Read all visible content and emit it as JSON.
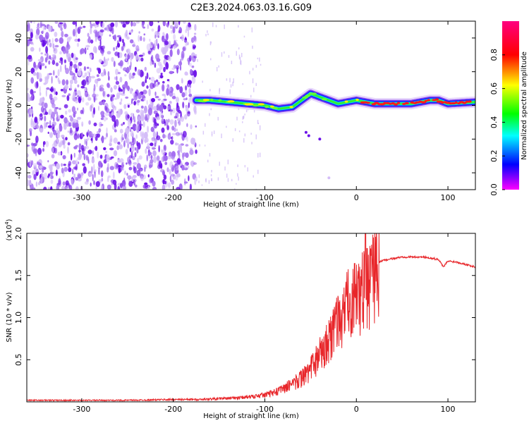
{
  "title": "C2E3.2024.063.03.16.G09",
  "colors": {
    "snr_line": "#e8262a",
    "noise_purple": "#6a10e8",
    "colormap": [
      "#ff00ff",
      "#0000ff",
      "#00ffff",
      "#00ff00",
      "#ffff00",
      "#ff0000",
      "#ff0080"
    ]
  },
  "chart_data": [
    {
      "type": "heatmap",
      "title": "",
      "xlabel": "Height of straight line (km)",
      "ylabel": "Frequency (Hz)",
      "xlim": [
        -360,
        130
      ],
      "ylim": [
        -50,
        50
      ],
      "x_ticks": [
        -300,
        -200,
        -100,
        0,
        100
      ],
      "y_ticks": [
        -40,
        -20,
        0,
        20,
        40
      ],
      "colorbar": {
        "label": "Normalized spectral amplitude",
        "range": [
          0,
          1
        ],
        "ticks": [
          "0.0",
          "0.2",
          "0.4",
          "0.6",
          "0.8"
        ],
        "tick_values": [
          0,
          0.2,
          0.4,
          0.6,
          0.8
        ]
      },
      "noise_region_x": [
        -360,
        -175
      ],
      "signal_ridge": {
        "x": [
          -175,
          -160,
          -140,
          -120,
          -100,
          -85,
          -70,
          -60,
          -50,
          -40,
          -30,
          -20,
          -10,
          0,
          20,
          60,
          80,
          90,
          100,
          130
        ],
        "freq": [
          3,
          3,
          2,
          1,
          0,
          -2,
          -1,
          3,
          7,
          5,
          3,
          1,
          2,
          3,
          1,
          1,
          3,
          3,
          1,
          2
        ]
      }
    },
    {
      "type": "line",
      "title": "",
      "xlabel": "Height of straight line (km)",
      "ylabel": "SNR (10 * v/v)",
      "y_multiplier": "(x10^4)",
      "xlim": [
        -360,
        130
      ],
      "ylim": [
        0,
        2.0
      ],
      "x_ticks": [
        -300,
        -200,
        -100,
        0,
        100
      ],
      "y_ticks": [
        0.5,
        1.0,
        1.5,
        2.0
      ],
      "y_tick_labels": [
        "0.5",
        "1.0",
        "1.5",
        "2.0"
      ],
      "series": [
        {
          "name": "",
          "x": [
            -360,
            -300,
            -250,
            -200,
            -175,
            -150,
            -130,
            -110,
            -100,
            -90,
            -80,
            -70,
            -60,
            -50,
            -45,
            -40,
            -35,
            -30,
            -25,
            -20,
            -15,
            -10,
            -5,
            0,
            5,
            10,
            15,
            20,
            25,
            30,
            40,
            50,
            60,
            70,
            80,
            90,
            95,
            100,
            110,
            120,
            130
          ],
          "y": [
            0.02,
            0.02,
            0.02,
            0.03,
            0.03,
            0.04,
            0.05,
            0.07,
            0.09,
            0.12,
            0.17,
            0.22,
            0.3,
            0.42,
            0.52,
            0.6,
            0.72,
            0.82,
            0.92,
            1.02,
            1.12,
            1.25,
            1.32,
            1.35,
            1.42,
            1.5,
            1.56,
            1.6,
            1.66,
            1.68,
            1.7,
            1.72,
            1.72,
            1.72,
            1.71,
            1.69,
            1.6,
            1.67,
            1.66,
            1.63,
            1.6
          ],
          "peak": {
            "x": 10,
            "y": 2.0
          }
        }
      ]
    }
  ]
}
